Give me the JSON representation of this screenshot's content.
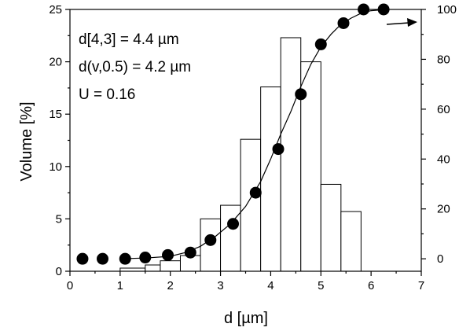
{
  "chart_data": {
    "type": "bar",
    "xlabel": "d [µm]",
    "ylabel": "Volume [%]",
    "xlim": [
      0,
      7
    ],
    "ylim": [
      0,
      25
    ],
    "y2lim": [
      -5,
      100
    ],
    "x_ticks": [
      "0",
      "1",
      "2",
      "3",
      "4",
      "5",
      "6",
      "7"
    ],
    "y_ticks": [
      "0",
      "5",
      "10",
      "15",
      "20",
      "25"
    ],
    "y2_ticks": [
      "0",
      "20",
      "40",
      "60",
      "80",
      "100"
    ],
    "annotations": [
      "d[4,3] = 4.4 µm",
      "d(v,0.5) = 4.2 µm",
      "U = 0.16"
    ],
    "arrow_direction": "right",
    "histogram": {
      "bin_edges": [
        1.0,
        1.5,
        1.8,
        2.2,
        2.6,
        3.0,
        3.4,
        3.8,
        4.2,
        4.6,
        5.0,
        5.4,
        5.8
      ],
      "values": [
        0.3,
        0.6,
        1.0,
        1.5,
        5.0,
        6.3,
        12.6,
        17.6,
        22.3,
        20.0,
        8.3,
        5.7
      ]
    },
    "cumulative_points": {
      "x": [
        0.25,
        0.65,
        1.1,
        1.5,
        1.95,
        2.4,
        2.8,
        3.25,
        3.7,
        4.15,
        4.6,
        5.0,
        5.45,
        5.85,
        6.25
      ],
      "y": [
        0,
        0,
        0,
        0.5,
        1.5,
        2.5,
        7.5,
        14,
        26.5,
        44,
        66,
        86,
        94.5,
        100,
        100
      ]
    },
    "fit_curve": {
      "x": [
        1.0,
        1.5,
        2.0,
        2.3,
        2.6,
        2.9,
        3.2,
        3.5,
        3.8,
        4.0,
        4.2,
        4.4,
        4.6,
        4.8,
        5.0,
        5.2,
        5.4,
        5.6,
        5.8,
        6.0,
        6.3
      ],
      "y": [
        0,
        0.3,
        1.0,
        2.5,
        5.0,
        9.0,
        14.0,
        21.0,
        31.0,
        40.0,
        50.0,
        59.0,
        69.0,
        78.0,
        85.0,
        90.0,
        94.0,
        96.5,
        98.5,
        99.5,
        100
      ]
    }
  }
}
